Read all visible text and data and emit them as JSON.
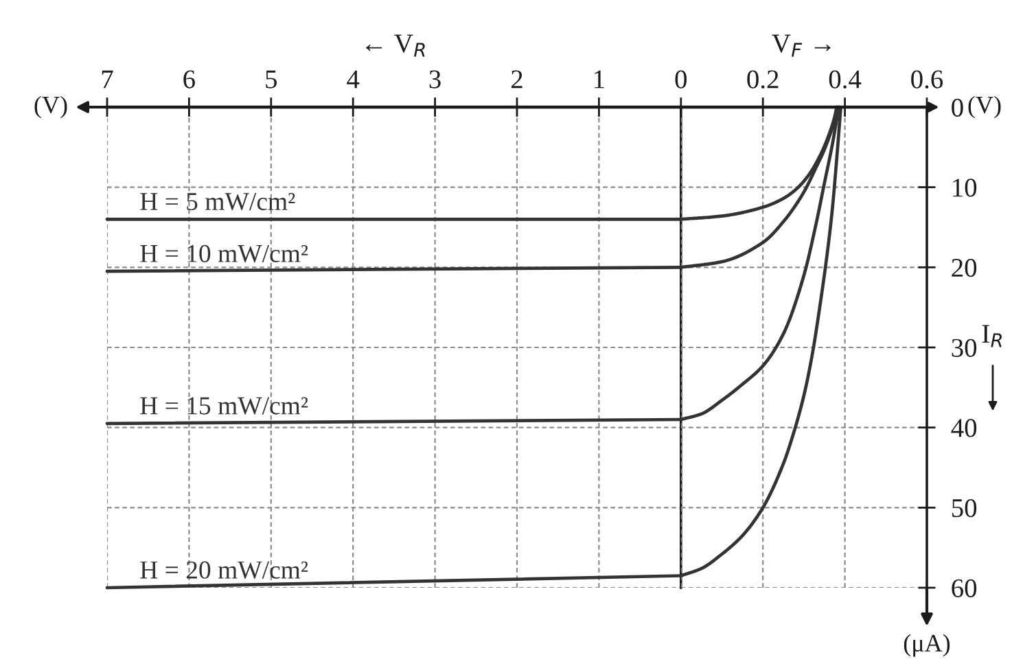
{
  "chart_data": [
    {
      "type": "line",
      "xlabel": "← V$_{R}$",
      "annotations": [
        "(V)"
      ],
      "xlim": [
        7,
        0
      ],
      "xticks": [
        7,
        6,
        5,
        4,
        3,
        2,
        1
      ],
      "ylim": [
        60,
        0
      ],
      "yticks": [
        0,
        10,
        20,
        30,
        40,
        50,
        60
      ],
      "tick_labels": "x",
      "grid": true,
      "series": [
        {
          "name": "H = 5 mW/cm²",
          "color": "#333333",
          "x": [
            7,
            0
          ],
          "values": [
            14,
            14
          ]
        },
        {
          "name": "H = 10 mW/cm²",
          "color": "#333333",
          "x": [
            7,
            0
          ],
          "values": [
            20.5,
            20
          ]
        },
        {
          "name": "H = 15 mW/cm²",
          "color": "#333333",
          "x": [
            7,
            0
          ],
          "values": [
            39.5,
            39
          ]
        },
        {
          "name": "H = 20 mW/cm²",
          "color": "#333333",
          "x": [
            7,
            0
          ],
          "values": [
            60,
            58.5
          ]
        }
      ]
    },
    {
      "type": "line",
      "xlabel": "V$_{F}$ →",
      "ylabel": "I$_{R}$",
      "annotations": [
        "(V)",
        "(μA)"
      ],
      "xlim": [
        0,
        0.6
      ],
      "xticks": [
        0,
        0.2,
        0.4,
        0.6
      ],
      "ylim": [
        60,
        0
      ],
      "yticks": [
        0,
        10,
        20,
        30,
        40,
        50,
        60
      ],
      "grid": true,
      "series": [
        {
          "color": "#333333",
          "x": [
            0,
            0.1,
            0.2,
            0.25,
            0.28,
            0.31,
            0.34,
            0.36,
            0.375,
            0.38
          ],
          "values": [
            14,
            13.6,
            12.5,
            11.4,
            10.3,
            8.6,
            6,
            3.6,
            1.2,
            0
          ]
        },
        {
          "color": "#333333",
          "x": [
            0,
            0.1,
            0.2,
            0.25,
            0.3,
            0.33,
            0.35,
            0.37,
            0.385
          ],
          "values": [
            20,
            19.3,
            16.9,
            14.3,
            10.6,
            7.5,
            5.3,
            2.5,
            0
          ]
        },
        {
          "color": "#333333",
          "x": [
            0,
            0.05,
            0.1,
            0.15,
            0.2,
            0.25,
            0.3,
            0.33,
            0.35,
            0.37,
            0.385
          ],
          "values": [
            39,
            38.3,
            36.6,
            34.6,
            32.3,
            28.3,
            21,
            14.5,
            9.5,
            4.5,
            0
          ]
        },
        {
          "color": "#333333",
          "x": [
            0,
            0.05,
            0.1,
            0.15,
            0.2,
            0.25,
            0.27,
            0.3,
            0.32,
            0.34,
            0.36,
            0.37,
            0.38,
            0.39
          ],
          "values": [
            58.5,
            57.6,
            55.8,
            53.5,
            50,
            44.5,
            41.5,
            36,
            31,
            24.5,
            17,
            12.4,
            6.5,
            0
          ]
        }
      ]
    }
  ]
}
